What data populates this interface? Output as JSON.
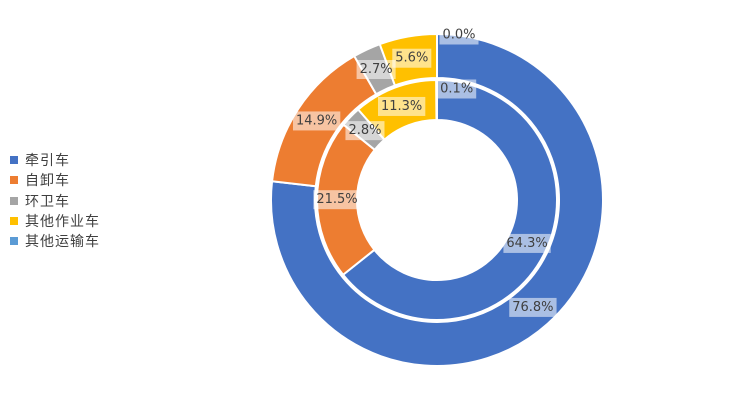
{
  "chart_data": {
    "type": "pie",
    "subtype": "nested-donut",
    "categories": [
      "牵引车",
      "自卸车",
      "环卫车",
      "其他作业车",
      "其他运输车"
    ],
    "colors": [
      "#4472C4",
      "#ED7D31",
      "#A5A5A5",
      "#FFC000",
      "#5B9BD5"
    ],
    "series": [
      {
        "ring": "outer",
        "values": [
          76.8,
          14.9,
          2.7,
          5.6,
          0.0
        ],
        "labels": [
          "76.8%",
          "14.9%",
          "2.7%",
          "5.6%",
          "0.0%"
        ]
      },
      {
        "ring": "inner",
        "values": [
          64.3,
          21.5,
          2.8,
          11.3,
          0.1
        ],
        "labels": [
          "64.3%",
          "21.5%",
          "2.8%",
          "11.3%",
          "0.1%"
        ]
      }
    ],
    "legend": "left"
  }
}
